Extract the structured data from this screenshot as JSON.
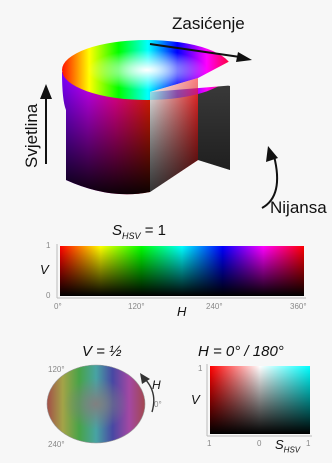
{
  "cylinder": {
    "saturation_label": "Zasićenje",
    "lightness_label": "Svjetlina",
    "hue_label": "Nijansa"
  },
  "strip": {
    "title": "S_HSV = 1",
    "title_main": "S",
    "title_sub": "HSV",
    "title_tail": " = 1",
    "y_axis_label": "V",
    "y_tick_top": "1",
    "y_tick_bottom": "0",
    "x_axis_label": "H",
    "x_ticks": [
      "0°",
      "120°",
      "240°",
      "360°"
    ]
  },
  "disk": {
    "title": "V = ½",
    "axis_label": "H",
    "tick_0": "0°",
    "tick_120": "120°",
    "tick_240": "240°"
  },
  "square": {
    "title": "H = 0° / 180°",
    "y_axis_label": "V",
    "y_tick_top": "1",
    "x_ticks": [
      "1",
      "0",
      "1"
    ],
    "x_axis_label_main": "S",
    "x_axis_label_sub": "HSV"
  }
}
